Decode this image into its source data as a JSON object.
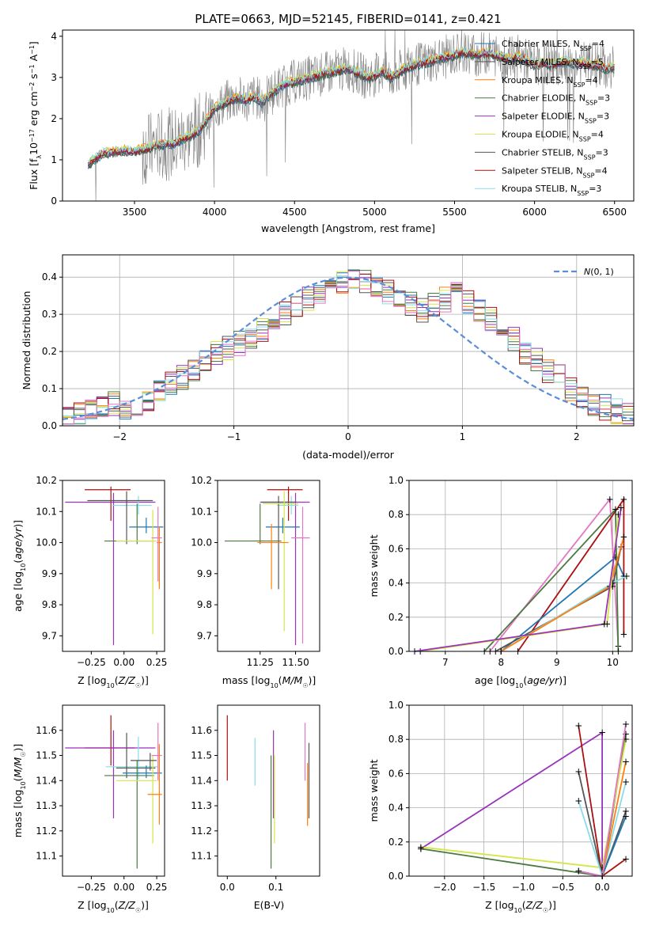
{
  "title": "PLATE=0663, MJD=52145, FIBERID=0141, z=0.421",
  "colors": {
    "chabrier_miles": "#1f77b4",
    "salpeter_miles": "#5a5a5a",
    "kroupa_miles": "#ff7f0e",
    "chabrier_elodie": "#4a7a40",
    "salpeter_elodie": "#9933bb",
    "kroupa_elodie": "#d4e64a",
    "chabrier_stelib": "#555555",
    "salpeter_stelib": "#aa1111",
    "kroupa_stelib": "#88dde6",
    "observed": "#808080",
    "normal_fit": "#5b8dd9",
    "pink": "#e377c2"
  },
  "chart_data": [
    {
      "type": "line",
      "title": "PLATE=0663, MJD=52145, FIBERID=0141, z=0.421",
      "xlabel": "wavelength [Angstrom, rest frame]",
      "ylabel": "Flux [fλ10⁻¹⁷ erg cm⁻² s⁻¹ A⁻¹]",
      "xlim": [
        3050,
        6620
      ],
      "ylim": [
        0,
        4.15
      ],
      "xticks": [
        3500,
        4000,
        4500,
        5000,
        5500,
        6000,
        6500
      ],
      "yticks": [
        0,
        1,
        2,
        3,
        4
      ],
      "legend_position": "top-right",
      "series": [
        {
          "name": "Chabrier MILES, N_SSP=4",
          "legend": "Chabrier MILES, N",
          "sub": "SSP",
          "suffix": "=4"
        },
        {
          "name": "Salpeter MILES, N_SSP=5",
          "legend": "Salpeter MILES, N",
          "sub": "SSP",
          "suffix": "=5"
        },
        {
          "name": "Kroupa MILES, N_SSP=4",
          "legend": "Kroupa MILES, N",
          "sub": "SSP",
          "suffix": "=4"
        },
        {
          "name": "Chabrier ELODIE, N_SSP=3",
          "legend": "Chabrier ELODIE, N",
          "sub": "SSP",
          "suffix": "=3"
        },
        {
          "name": "Salpeter ELODIE, N_SSP=3",
          "legend": "Salpeter ELODIE, N",
          "sub": "SSP",
          "suffix": "=3"
        },
        {
          "name": "Kroupa ELODIE, N_SSP=4",
          "legend": "Kroupa ELODIE, N",
          "sub": "SSP",
          "suffix": "=4"
        },
        {
          "name": "Chabrier STELIB, N_SSP=3",
          "legend": "Chabrier STELIB, N",
          "sub": "SSP",
          "suffix": "=3"
        },
        {
          "name": "Salpeter STELIB, N_SSP=4",
          "legend": "Salpeter STELIB, N",
          "sub": "SSP",
          "suffix": "=4"
        },
        {
          "name": "Kroupa STELIB, N_SSP=3",
          "legend": "Kroupa STELIB, N",
          "sub": "SSP",
          "suffix": "=3"
        }
      ],
      "continuum": {
        "x": [
          3200,
          3260,
          3300,
          3350,
          3400,
          3450,
          3500,
          3550,
          3600,
          3650,
          3700,
          3750,
          3800,
          3850,
          3900,
          3950,
          4000,
          4050,
          4100,
          4150,
          4200,
          4250,
          4300,
          4350,
          4400,
          4450,
          4500,
          4550,
          4600,
          4650,
          4700,
          4750,
          4800,
          4850,
          4900,
          4950,
          5000,
          5050,
          5100,
          5150,
          5200,
          5250,
          5300,
          5350,
          5400,
          5450,
          5500,
          5550,
          5600,
          5650,
          5700,
          5750,
          5800,
          5850,
          5900,
          5950,
          6000,
          6050,
          6100,
          6150,
          6200,
          6250,
          6300,
          6350,
          6400,
          6450,
          6500
        ],
        "y": [
          0.85,
          1.05,
          1.15,
          1.18,
          1.2,
          1.22,
          1.2,
          1.25,
          1.3,
          1.35,
          1.38,
          1.4,
          1.5,
          1.6,
          1.7,
          1.95,
          2.25,
          2.35,
          2.45,
          2.5,
          2.45,
          2.55,
          2.4,
          2.6,
          2.75,
          2.85,
          2.9,
          2.95,
          3.0,
          3.05,
          3.1,
          3.15,
          3.2,
          3.2,
          3.1,
          3.0,
          3.05,
          3.15,
          3.0,
          3.1,
          3.25,
          3.3,
          3.35,
          3.4,
          3.45,
          3.5,
          3.55,
          3.6,
          3.58,
          3.55,
          3.6,
          3.55,
          3.5,
          3.45,
          3.5,
          3.4,
          3.3,
          3.35,
          3.3,
          3.35,
          3.4,
          3.3,
          3.35,
          3.3,
          3.3,
          3.2,
          3.25
        ]
      },
      "noise_amplitude": "large scatter in observed spectrum between 3550 and 6500 A"
    },
    {
      "type": "histogram",
      "xlabel": "(data-model)/error",
      "ylabel": "Normed distribution",
      "xlim": [
        -2.5,
        2.5
      ],
      "ylim": [
        0,
        0.46
      ],
      "xticks": [
        -2,
        -1,
        0,
        1,
        2
      ],
      "yticks": [
        0.0,
        0.1,
        0.2,
        0.3,
        0.4
      ],
      "legend": {
        "label": "N(0,1)",
        "position": "top-right"
      },
      "bins": 50,
      "series": [
        {
          "color_key": "chabrier_miles",
          "values": [
            0.02,
            0.03,
            0.04,
            0.05,
            0.06,
            0.05,
            0.06,
            0.07,
            0.09,
            0.11,
            0.13,
            0.15,
            0.18,
            0.2,
            0.21,
            0.22,
            0.24,
            0.26,
            0.28,
            0.3,
            0.32,
            0.34,
            0.36,
            0.37,
            0.39,
            0.4,
            0.39,
            0.38,
            0.36,
            0.35,
            0.33,
            0.31,
            0.33,
            0.34,
            0.36,
            0.33,
            0.31,
            0.29,
            0.26,
            0.23,
            0.2,
            0.18,
            0.15,
            0.13,
            0.1,
            0.08,
            0.06,
            0.05,
            0.04,
            0.03
          ]
        }
      ]
    },
    {
      "type": "errorbar",
      "xlabel": "Z [log10(Z/Z☉)]",
      "ylabel": "age  [log10(age/yr)]",
      "xlim": [
        -0.47,
        0.31
      ],
      "ylim": [
        9.65,
        10.2
      ],
      "xticks": [
        -0.25,
        0.0,
        0.25
      ],
      "yticks": [
        9.7,
        9.8,
        9.9,
        10.0,
        10.1,
        10.2
      ],
      "points": [
        {
          "color_key": "salpeter_stelib",
          "x": -0.1,
          "y": 10.17,
          "xerr": [
            0.2,
            0.15
          ],
          "yerr": [
            0.1,
            0.01
          ]
        },
        {
          "color_key": "salpeter_elodie",
          "x": -0.08,
          "y": 10.13,
          "xerr": [
            0.37,
            0.32
          ],
          "yerr": [
            0.46,
            0.03
          ]
        },
        {
          "color_key": "kroupa_stelib",
          "x": 0.11,
          "y": 10.12,
          "xerr": [
            0.2,
            0.1
          ],
          "yerr": [
            0.03,
            0.03
          ]
        },
        {
          "color_key": "chabrier_stelib",
          "x": 0.02,
          "y": 10.135,
          "xerr": [
            0.3,
            0.2
          ],
          "yerr": [
            0.14,
            0.03
          ]
        },
        {
          "color_key": "chabrier_miles",
          "x": 0.17,
          "y": 10.05,
          "xerr": [
            0.13,
            0.13
          ],
          "yerr": [
            0.02,
            0.03
          ]
        },
        {
          "color_key": "chabrier_elodie",
          "x": 0.1,
          "y": 10.005,
          "xerr": [
            0.25,
            0.13
          ],
          "yerr": [
            0.01,
            0.12
          ]
        },
        {
          "color_key": "kroupa_elodie",
          "x": 0.22,
          "y": 10.005,
          "xerr": [
            0.28,
            0.03
          ],
          "yerr": [
            0.3,
            0.1
          ]
        },
        {
          "color_key": "kroupa_miles",
          "x": 0.27,
          "y": 10.0,
          "xerr": [
            0.02,
            0.02
          ],
          "yerr": [
            0.15,
            0.05
          ]
        },
        {
          "color_key": "pink",
          "x": 0.26,
          "y": 10.015,
          "xerr": [
            0.05,
            0.03
          ],
          "yerr": [
            0.14,
            0.1
          ]
        }
      ]
    },
    {
      "type": "errorbar",
      "xlabel": "mass [log10(M/M☉)]",
      "ylabel": "",
      "xlim": [
        10.95,
        11.67
      ],
      "ylim": [
        9.65,
        10.2
      ],
      "xticks": [
        11.25,
        11.5
      ],
      "yticks": [
        9.7,
        9.8,
        9.9,
        10.0,
        10.1,
        10.2
      ]
    },
    {
      "type": "line",
      "xlabel": "age  [log10(age/yr)]",
      "ylabel": "mass weight",
      "xlim": [
        6.35,
        10.35
      ],
      "ylim": [
        0,
        1.0
      ],
      "xticks": [
        7,
        8,
        9,
        10
      ],
      "yticks": [
        0.0,
        0.2,
        0.4,
        0.6,
        0.8,
        1.0
      ]
    },
    {
      "type": "errorbar",
      "xlabel": "Z [log10(Z/Z☉)]",
      "ylabel": "mass [log10(M/M☉)]",
      "xlim": [
        -0.47,
        0.31
      ],
      "ylim": [
        11.02,
        11.7
      ],
      "xticks": [
        -0.25,
        0.0,
        0.25
      ],
      "yticks": [
        11.1,
        11.2,
        11.3,
        11.4,
        11.5,
        11.6
      ]
    },
    {
      "type": "errorbar",
      "xlabel": "E(B-V)",
      "ylabel": "",
      "xlim": [
        -0.02,
        0.19
      ],
      "ylim": [
        11.02,
        11.7
      ],
      "xticks": [
        0.0,
        0.1
      ],
      "yticks": [
        11.1,
        11.2,
        11.3,
        11.4,
        11.5,
        11.6
      ]
    },
    {
      "type": "line",
      "xlabel": "Z [log10(Z/Z☉)]",
      "ylabel": "mass weight",
      "xlim": [
        -2.45,
        0.38
      ],
      "ylim": [
        0,
        1.0
      ],
      "xticks": [
        -2.0,
        -1.5,
        -1.0,
        -0.5,
        0.0
      ],
      "yticks": [
        0.0,
        0.2,
        0.4,
        0.6,
        0.8,
        1.0
      ]
    }
  ]
}
